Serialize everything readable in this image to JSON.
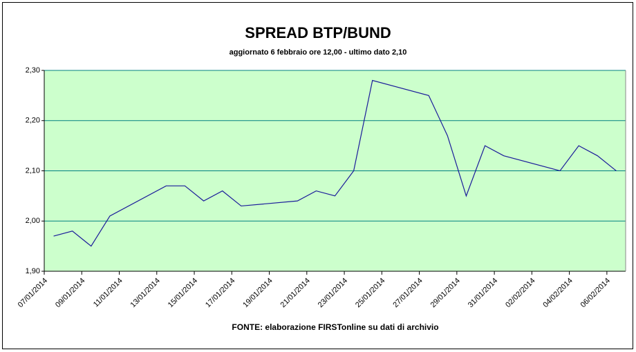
{
  "chart_data": {
    "type": "line",
    "title": "SPREAD BTP/BUND",
    "subtitle": "aggiornato 6 febbraio ore 12,00 - ultimo dato 2,10",
    "source": "FONTE: elaborazione FIRSTonline su dati di archivio",
    "x": [
      "07/01/2014",
      "08/01/2014",
      "09/01/2014",
      "10/01/2014",
      "13/01/2014",
      "14/01/2014",
      "15/01/2014",
      "16/01/2014",
      "17/01/2014",
      "20/01/2014",
      "21/01/2014",
      "22/01/2014",
      "23/01/2014",
      "24/01/2014",
      "27/01/2014",
      "28/01/2014",
      "29/01/2014",
      "30/01/2014",
      "31/01/2014",
      "03/02/2014",
      "04/02/2014",
      "05/02/2014",
      "06/02/2014"
    ],
    "series": [
      {
        "name": "Spread",
        "color": "#1a1a9a",
        "values": [
          1.97,
          1.98,
          1.95,
          2.01,
          2.07,
          2.07,
          2.04,
          2.06,
          2.03,
          2.04,
          2.06,
          2.05,
          2.1,
          2.28,
          2.25,
          2.17,
          2.05,
          2.15,
          2.13,
          2.1,
          2.15,
          2.13,
          2.1
        ]
      }
    ],
    "xticks": [
      "07/01/2014",
      "09/01/2014",
      "11/01/2014",
      "13/01/2014",
      "15/01/2014",
      "17/01/2014",
      "19/01/2014",
      "21/01/2014",
      "23/01/2014",
      "25/01/2014",
      "27/01/2014",
      "29/01/2014",
      "31/01/2014",
      "02/02/2014",
      "04/02/2014",
      "06/02/2014"
    ],
    "ylim": [
      1.9,
      2.3
    ],
    "yticks": [
      {
        "value": 1.9,
        "label": "1,90"
      },
      {
        "value": 2.0,
        "label": "2,00"
      },
      {
        "value": 2.1,
        "label": "2,10"
      },
      {
        "value": 2.2,
        "label": "2,20"
      },
      {
        "value": 2.3,
        "label": "2,30"
      }
    ],
    "grid": true,
    "background": "#ccffcc"
  }
}
